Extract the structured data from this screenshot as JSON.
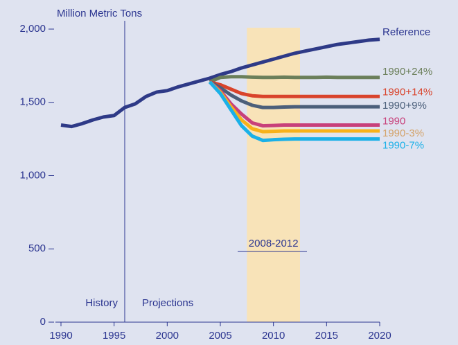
{
  "chart_data": {
    "type": "line",
    "y_label": "Million Metric Tons",
    "annotations": {
      "period": "2008-2012",
      "history": "History",
      "projections": "Projections"
    },
    "shaded_range": [
      2007.5,
      2012.5
    ],
    "divider_x": 1996,
    "x": [
      1990,
      1991,
      1992,
      1993,
      1994,
      1995,
      1996,
      1997,
      1998,
      1999,
      2000,
      2001,
      2002,
      2003,
      2004,
      2005,
      2006,
      2007,
      2008,
      2009,
      2010,
      2011,
      2012,
      2013,
      2014,
      2015,
      2016,
      2017,
      2018,
      2019,
      2020
    ],
    "series": [
      {
        "name": "Reference",
        "color": "#2e3a87",
        "label_color": "#2b3590",
        "values": [
          1345,
          1335,
          1355,
          1380,
          1400,
          1410,
          1465,
          1490,
          1540,
          1570,
          1580,
          1605,
          1625,
          1645,
          1665,
          1690,
          1710,
          1735,
          1755,
          1775,
          1795,
          1815,
          1835,
          1850,
          1865,
          1880,
          1895,
          1905,
          1915,
          1925,
          1930
        ]
      },
      {
        "name": "1990+24%",
        "color": "#6b7f5a",
        "label_color": "#6b7f5a",
        "values": [
          null,
          null,
          null,
          null,
          null,
          null,
          null,
          null,
          null,
          null,
          null,
          null,
          null,
          null,
          1640,
          1670,
          1675,
          1675,
          1672,
          1670,
          1670,
          1672,
          1670,
          1670,
          1670,
          1672,
          1670,
          1670,
          1670,
          1670,
          1670
        ]
      },
      {
        "name": "1990+14%",
        "color": "#d9432b",
        "label_color": "#d9432b",
        "values": [
          null,
          null,
          null,
          null,
          null,
          null,
          null,
          null,
          null,
          null,
          null,
          null,
          null,
          null,
          1640,
          1620,
          1590,
          1560,
          1545,
          1540,
          1540,
          1540,
          1540,
          1540,
          1540,
          1540,
          1540,
          1540,
          1540,
          1540,
          1540
        ]
      },
      {
        "name": "1990+9%",
        "color": "#4b5f7a",
        "label_color": "#4b5f7a",
        "values": [
          null,
          null,
          null,
          null,
          null,
          null,
          null,
          null,
          null,
          null,
          null,
          null,
          null,
          null,
          1640,
          1600,
          1550,
          1510,
          1480,
          1465,
          1465,
          1468,
          1470,
          1470,
          1470,
          1470,
          1470,
          1470,
          1470,
          1470,
          1470
        ]
      },
      {
        "name": "1990",
        "color": "#c8407a",
        "label_color": "#c8407a",
        "values": [
          null,
          null,
          null,
          null,
          null,
          null,
          null,
          null,
          null,
          null,
          null,
          null,
          null,
          null,
          1640,
          1580,
          1490,
          1420,
          1360,
          1340,
          1342,
          1345,
          1345,
          1345,
          1345,
          1345,
          1345,
          1345,
          1345,
          1345,
          1345
        ]
      },
      {
        "name": "1990-3%",
        "color": "#f7b21b",
        "label_color": "#d4a36a",
        "values": [
          null,
          null,
          null,
          null,
          null,
          null,
          null,
          null,
          null,
          null,
          null,
          null,
          null,
          null,
          1640,
          1570,
          1470,
          1380,
          1320,
          1300,
          1302,
          1305,
          1305,
          1305,
          1305,
          1305,
          1305,
          1305,
          1305,
          1305,
          1305
        ]
      },
      {
        "name": "1990-7%",
        "color": "#1ab0e8",
        "label_color": "#1ab0e8",
        "values": [
          null,
          null,
          null,
          null,
          null,
          null,
          null,
          null,
          null,
          null,
          null,
          null,
          null,
          null,
          1640,
          1560,
          1450,
          1340,
          1270,
          1240,
          1245,
          1248,
          1250,
          1250,
          1250,
          1250,
          1250,
          1250,
          1250,
          1250,
          1250
        ]
      }
    ],
    "xlim": [
      1990,
      2020
    ],
    "xticks": [
      1990,
      1995,
      2000,
      2005,
      2010,
      2015,
      2020
    ],
    "ylim": [
      0,
      2000
    ],
    "yticks": [
      0,
      500,
      {
        "value": 1000,
        "label": "1,000"
      },
      {
        "value": 1500,
        "label": "1,500"
      },
      {
        "value": 2000,
        "label": "2,000"
      }
    ]
  }
}
